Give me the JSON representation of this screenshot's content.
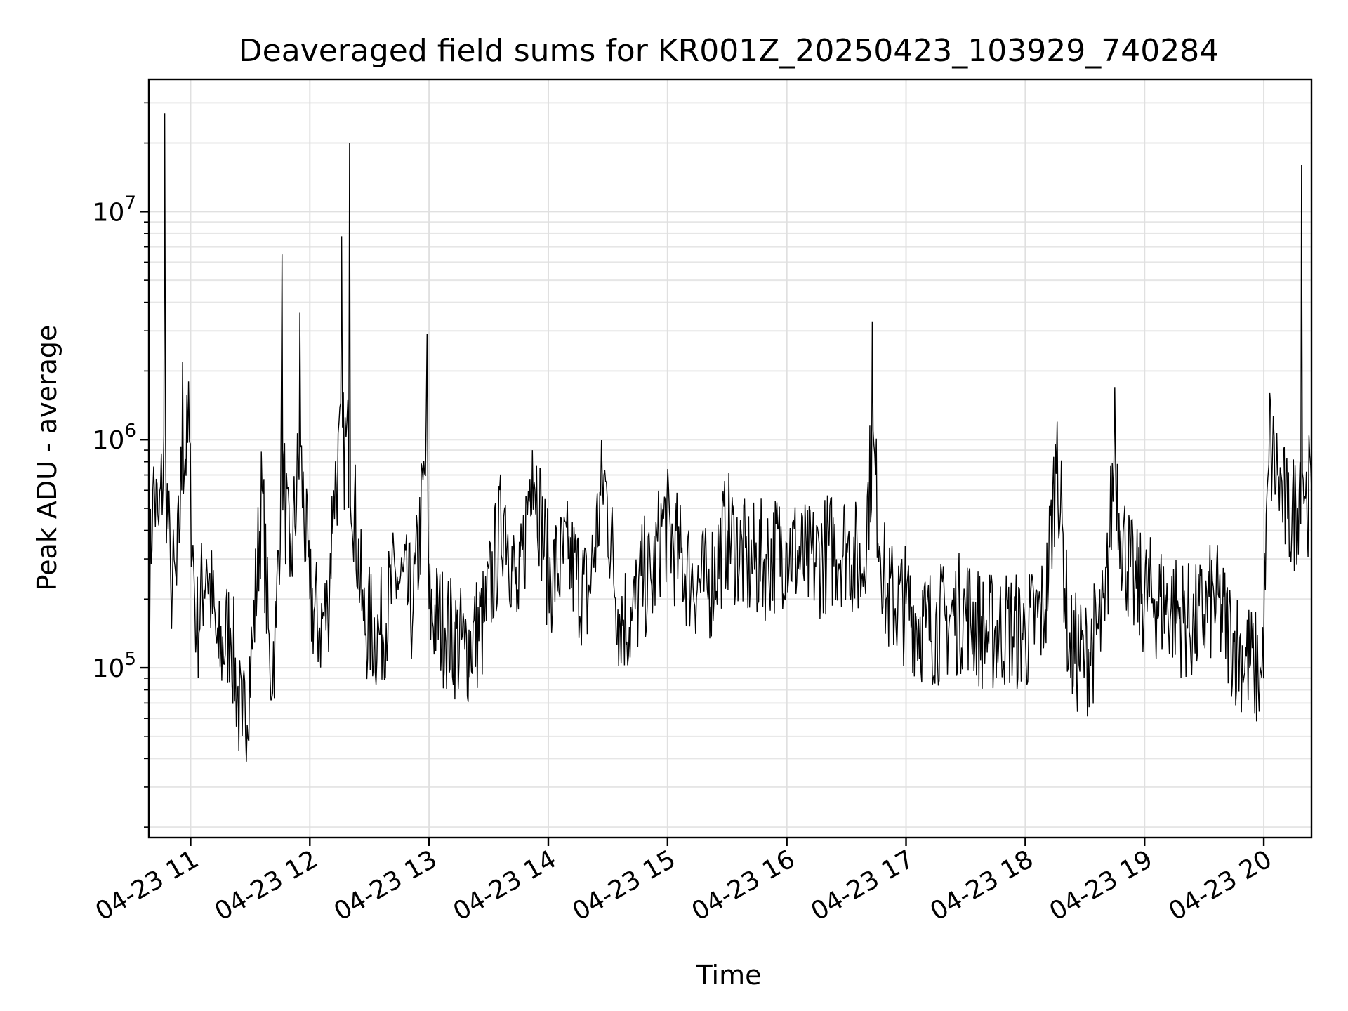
{
  "chart_data": {
    "type": "line",
    "title": "Deaveraged field sums for KR001Z_20250423_103929_740284",
    "xlabel": "Time",
    "ylabel": "Peak ADU - average",
    "yscale": "log",
    "ylim": [
      18000,
      38000000
    ],
    "xlim": [
      "2025-04-23 10:39",
      "2025-04-23 20:24"
    ],
    "grid": true,
    "grid_minor": true,
    "line_color": "#000000",
    "x_ticks": [
      {
        "t": "2025-04-23 11:00",
        "label": "04-23 11"
      },
      {
        "t": "2025-04-23 12:00",
        "label": "04-23 12"
      },
      {
        "t": "2025-04-23 13:00",
        "label": "04-23 13"
      },
      {
        "t": "2025-04-23 14:00",
        "label": "04-23 14"
      },
      {
        "t": "2025-04-23 15:00",
        "label": "04-23 15"
      },
      {
        "t": "2025-04-23 16:00",
        "label": "04-23 16"
      },
      {
        "t": "2025-04-23 17:00",
        "label": "04-23 17"
      },
      {
        "t": "2025-04-23 18:00",
        "label": "04-23 18"
      },
      {
        "t": "2025-04-23 19:00",
        "label": "04-23 19"
      },
      {
        "t": "2025-04-23 20:00",
        "label": "04-23 20"
      }
    ],
    "y_ticks": [
      {
        "value": 100000,
        "base": "10",
        "exp": "5"
      },
      {
        "value": 1000000,
        "base": "10",
        "exp": "6"
      },
      {
        "value": 10000000,
        "base": "10",
        "exp": "7"
      }
    ],
    "series": [
      {
        "x": [
          "2025-04-23 10:39",
          "2025-04-23 10:41",
          "2025-04-23 10:44",
          "2025-04-23 10:47",
          "2025-04-23 10:50",
          "2025-04-23 10:53",
          "2025-04-23 10:56",
          "2025-04-23 10:59",
          "2025-04-23 11:03",
          "2025-04-23 11:08",
          "2025-04-23 11:14",
          "2025-04-23 11:20",
          "2025-04-23 11:26",
          "2025-04-23 11:31",
          "2025-04-23 11:36",
          "2025-04-23 11:40",
          "2025-04-23 11:43",
          "2025-04-23 11:46",
          "2025-04-23 11:50",
          "2025-04-23 11:55",
          "2025-04-23 12:00",
          "2025-04-23 12:05",
          "2025-04-23 12:09",
          "2025-04-23 12:12",
          "2025-04-23 12:16",
          "2025-04-23 12:20",
          "2025-04-23 12:27",
          "2025-04-23 12:35",
          "2025-04-23 12:44",
          "2025-04-23 12:52",
          "2025-04-23 12:59",
          "2025-04-23 13:00",
          "2025-04-23 13:08",
          "2025-04-23 13:18",
          "2025-04-23 13:28",
          "2025-04-23 13:38",
          "2025-04-23 13:45",
          "2025-04-23 13:52",
          "2025-04-23 14:00",
          "2025-04-23 14:10",
          "2025-04-23 14:20",
          "2025-04-23 14:28",
          "2025-04-23 14:35",
          "2025-04-23 14:42",
          "2025-04-23 14:48",
          "2025-04-23 14:52",
          "2025-04-23 14:58",
          "2025-04-23 15:06",
          "2025-04-23 15:12",
          "2025-04-23 15:20",
          "2025-04-23 15:30",
          "2025-04-23 15:40",
          "2025-04-23 15:50",
          "2025-04-23 16:00",
          "2025-04-23 16:10",
          "2025-04-23 16:20",
          "2025-04-23 16:30",
          "2025-04-23 16:38",
          "2025-04-23 16:43",
          "2025-04-23 16:50",
          "2025-04-23 17:00",
          "2025-04-23 17:10",
          "2025-04-23 17:20",
          "2025-04-23 17:30",
          "2025-04-23 17:40",
          "2025-04-23 17:50",
          "2025-04-23 18:00",
          "2025-04-23 18:10",
          "2025-04-23 18:16",
          "2025-04-23 18:22",
          "2025-04-23 18:30",
          "2025-04-23 18:40",
          "2025-04-23 18:45",
          "2025-04-23 18:48",
          "2025-04-23 18:55",
          "2025-04-23 19:05",
          "2025-04-23 19:15",
          "2025-04-23 19:25",
          "2025-04-23 19:35",
          "2025-04-23 19:45",
          "2025-04-23 19:55",
          "2025-04-23 19:59",
          "2025-04-23 20:03",
          "2025-04-23 20:07",
          "2025-04-23 20:12",
          "2025-04-23 20:17",
          "2025-04-23 20:19",
          "2025-04-23 20:21",
          "2025-04-23 20:24"
        ],
        "values": [
          180000,
          600000,
          420000,
          27000000,
          240000,
          230000,
          2200000,
          1800000,
          140000,
          300000,
          110000,
          150000,
          50000,
          120000,
          600000,
          90000,
          150000,
          6500000,
          250000,
          3600000,
          200000,
          150000,
          180000,
          600000,
          7800000,
          20000000,
          160000,
          140000,
          250000,
          180000,
          2900000,
          180000,
          150000,
          120000,
          160000,
          500000,
          180000,
          900000,
          250000,
          300000,
          200000,
          700000,
          180000,
          160000,
          250000,
          230000,
          450000,
          300000,
          250000,
          220000,
          400000,
          280000,
          300000,
          350000,
          280000,
          320000,
          350000,
          260000,
          3300000,
          200000,
          190000,
          150000,
          160000,
          180000,
          140000,
          150000,
          140000,
          180000,
          1200000,
          120000,
          110000,
          160000,
          1700000,
          400000,
          220000,
          200000,
          180000,
          150000,
          200000,
          130000,
          100000,
          90000,
          1600000,
          700000,
          450000,
          500000,
          16000000,
          550000,
          600000
        ]
      }
    ]
  }
}
